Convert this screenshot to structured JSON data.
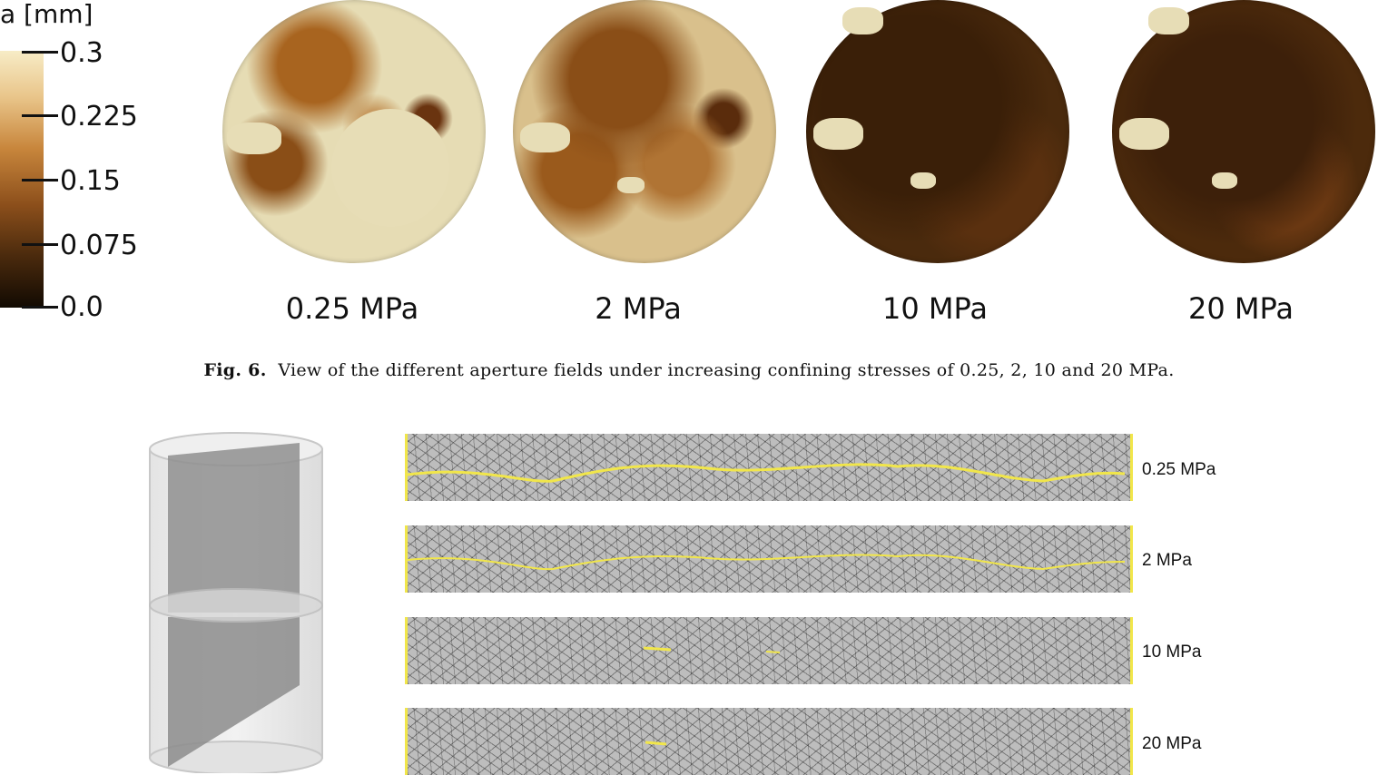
{
  "colorbar": {
    "title": "a [mm]",
    "ticks": [
      "0.3",
      "0.225",
      "0.15",
      "0.075",
      "0.0"
    ],
    "range": [
      0.0,
      0.3
    ]
  },
  "aperture_fields": [
    {
      "label": "0.25 MPa"
    },
    {
      "label": "2 MPa"
    },
    {
      "label": "10 MPa"
    },
    {
      "label": "20 MPa"
    }
  ],
  "figure6": {
    "number": "Fig. 6.",
    "caption": "View of the different aperture fields under increasing confining stresses of 0.25, 2, 10 and 20 MPa."
  },
  "mesh_sections": [
    {
      "label": "0.25 MPa"
    },
    {
      "label": "2 MPa"
    },
    {
      "label": "10 MPa"
    },
    {
      "label": "20 MPa"
    }
  ],
  "colors": {
    "fracture_yellow": "#f1e64a",
    "mesh_gray": "#bdbdbd",
    "cylinder_gray": "#8f8f8f"
  }
}
